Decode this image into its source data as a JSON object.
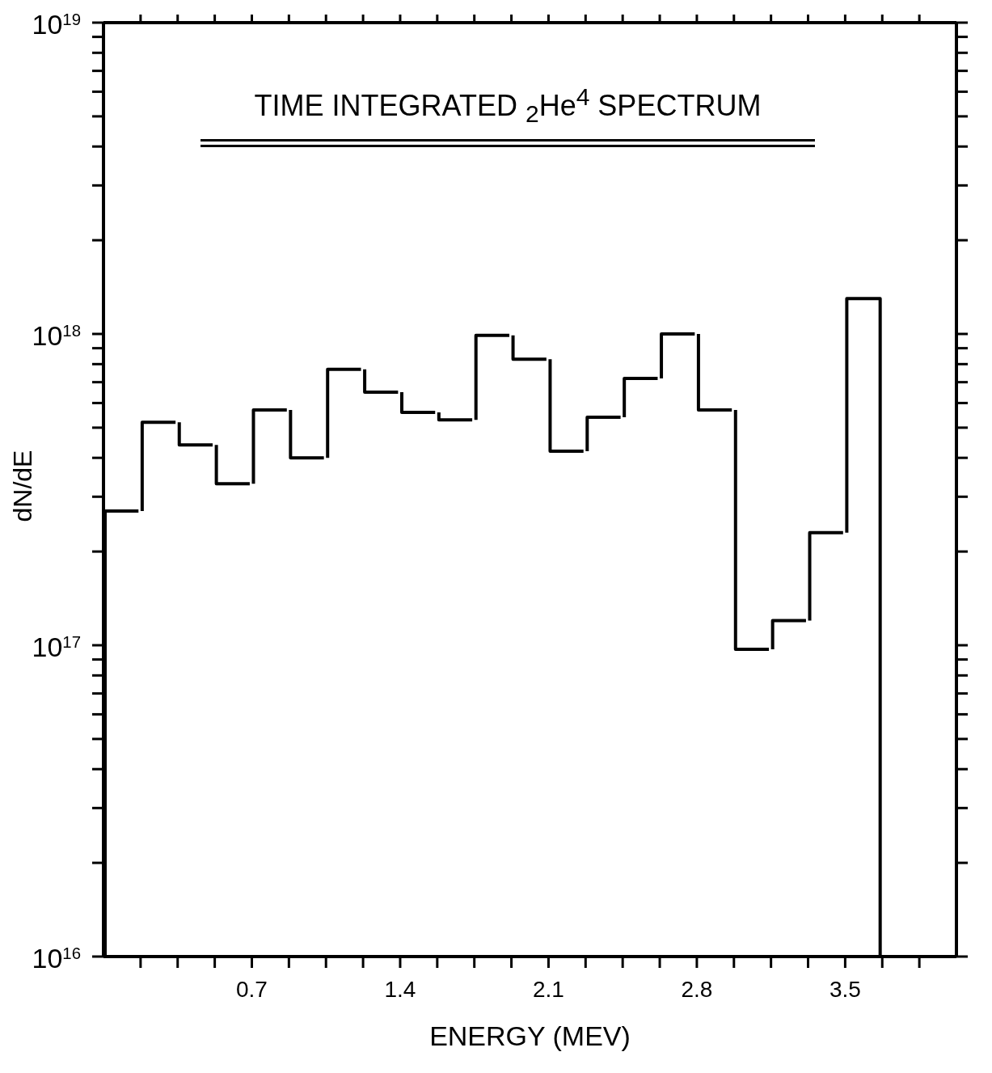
{
  "chart_data": {
    "type": "histogram",
    "title": "TIME INTEGRATED $_{2}$He$^{4}$ SPECTRUM",
    "xlabel": "ENERGY (MEV)",
    "ylabel": "dN/dE",
    "color": "#000000",
    "bins": [
      0,
      0.175,
      0.35,
      0.525,
      0.7,
      0.875,
      1.05,
      1.225,
      1.4,
      1.575,
      1.75,
      1.925,
      2.1,
      2.275,
      2.45,
      2.625,
      2.8,
      2.975,
      3.15,
      3.325,
      3.5,
      3.675
    ],
    "values": [
      2.7e+17,
      5.2e+17,
      4.4e+17,
      3.3e+17,
      5.7e+17,
      4e+17,
      7.7e+17,
      6.5e+17,
      5.6e+17,
      5.3e+17,
      9.9e+17,
      8.3e+17,
      4.2e+17,
      5.4e+17,
      7.2e+17,
      1e+18,
      5.7e+17,
      9.7e+16,
      1.2e+17,
      2.3e+17,
      1.3e+18
    ],
    "xlim": [
      0,
      4.025
    ],
    "xticks": [
      {
        "value": 0.175,
        "label": null
      },
      {
        "value": 0.35,
        "label": null
      },
      {
        "value": 0.525,
        "label": null
      },
      0.7,
      {
        "value": 0.875,
        "label": null
      },
      {
        "value": 1.05,
        "label": null
      },
      {
        "value": 1.225,
        "label": null
      },
      1.4,
      {
        "value": 1.575,
        "label": null
      },
      {
        "value": 1.75,
        "label": null
      },
      {
        "value": 1.925,
        "label": null
      },
      2.1,
      {
        "value": 2.275,
        "label": null
      },
      {
        "value": 2.45,
        "label": null
      },
      {
        "value": 2.625,
        "label": null
      },
      2.8,
      {
        "value": 2.975,
        "label": null
      },
      {
        "value": 3.15,
        "label": null
      },
      {
        "value": 3.325,
        "label": null
      },
      3.5,
      {
        "value": 3.675,
        "label": null
      },
      {
        "value": 3.85,
        "label": null
      }
    ],
    "log": "y",
    "ylim": [
      1e+16,
      1e+19
    ],
    "yticks": [
      {
        "value": 1e+16,
        "label": "10$^{16}$"
      },
      {
        "value": 2e+16,
        "label": null
      },
      {
        "value": 3e+16,
        "label": null
      },
      {
        "value": 4e+16,
        "label": null
      },
      {
        "value": 5e+16,
        "label": null
      },
      {
        "value": 6e+16,
        "label": null
      },
      {
        "value": 7e+16,
        "label": null
      },
      {
        "value": 8e+16,
        "label": null
      },
      {
        "value": 9e+16,
        "label": null
      },
      {
        "value": 1e+17,
        "label": "10$^{17}$"
      },
      {
        "value": 2e+17,
        "label": null
      },
      {
        "value": 3e+17,
        "label": null
      },
      {
        "value": 4e+17,
        "label": null
      },
      {
        "value": 5e+17,
        "label": null
      },
      {
        "value": 6e+17,
        "label": null
      },
      {
        "value": 7e+17,
        "label": null
      },
      {
        "value": 8e+17,
        "label": null
      },
      {
        "value": 9e+17,
        "label": null
      },
      {
        "value": 1e+18,
        "label": "10$^{18}$"
      },
      {
        "value": 2e+18,
        "label": null
      },
      {
        "value": 3e+18,
        "label": null
      },
      {
        "value": 4e+18,
        "label": null
      },
      {
        "value": 5e+18,
        "label": null
      },
      {
        "value": 6e+18,
        "label": null
      },
      {
        "value": 7e+18,
        "label": null
      },
      {
        "value": 8e+18,
        "label": null
      },
      {
        "value": 9e+18,
        "label": null
      },
      {
        "value": 1e+19,
        "label": "10$^{19}$"
      }
    ],
    "tick_labels": true
  }
}
